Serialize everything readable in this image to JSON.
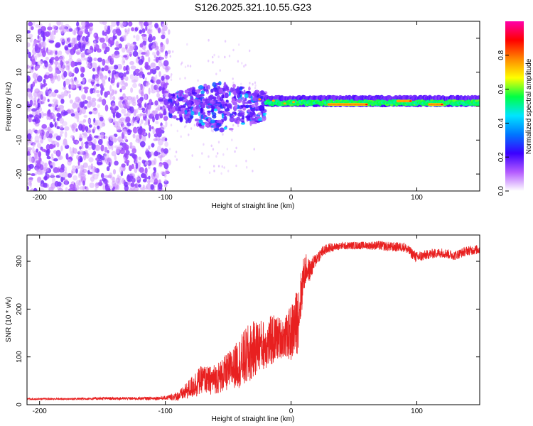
{
  "title": "S126.2025.321.10.55.G23",
  "colors": {
    "snr_line": "#e82020",
    "colormap": [
      "#ffffff",
      "#b45cff",
      "#3a00ff",
      "#0077ff",
      "#00e5ff",
      "#00ff44",
      "#ffff00",
      "#ff8800",
      "#ff0000",
      "#ff00aa"
    ]
  },
  "chart_data": [
    {
      "type": "heatmap",
      "name": "spectrogram",
      "xlabel": "Height of straight line (km)",
      "ylabel": "Frequency (Hz)",
      "xlim": [
        -210,
        150
      ],
      "ylim": [
        -25,
        25
      ],
      "xticks": [
        -200,
        -100,
        0,
        100
      ],
      "yticks": [
        -20,
        -10,
        0,
        10,
        20
      ],
      "colorbar": {
        "label": "Normalized spectral amplitude",
        "range": [
          0,
          1
        ],
        "ticks": [
          "0.0",
          "0.2",
          "0.4",
          "0.6",
          "0.8"
        ],
        "tick_values": [
          0.0,
          0.2,
          0.4,
          0.6,
          0.8
        ]
      },
      "regions": [
        {
          "x": [
            -210,
            -97
          ],
          "freq_band": [
            -25,
            25
          ],
          "amplitude": 0.08,
          "description_level": "noise"
        },
        {
          "x": [
            -97,
            -20
          ],
          "freq_band": [
            -8,
            6
          ],
          "amplitude": 0.2
        },
        {
          "x": [
            -20,
            150
          ],
          "freq_center": 1,
          "freq_band": [
            -1,
            2
          ],
          "amplitude": 0.55
        },
        {
          "x": [
            30,
            60
          ],
          "freq_center": 0.5,
          "amplitude": 0.9
        },
        {
          "x": [
            85,
            95
          ],
          "freq_center": 1.5,
          "amplitude": 0.9
        },
        {
          "x": [
            110,
            120
          ],
          "freq_center": 0.5,
          "amplitude": 0.9
        }
      ]
    },
    {
      "type": "line",
      "name": "snr",
      "xlabel": "Height of straight line (km)",
      "ylabel": "SNR (10 * v/v)",
      "xlim": [
        -210,
        150
      ],
      "ylim": [
        0,
        355
      ],
      "xticks": [
        -200,
        -100,
        0,
        100
      ],
      "yticks": [
        0,
        100,
        200,
        300
      ],
      "series": [
        {
          "x": [
            -210,
            -180,
            -150,
            -120,
            -100,
            -90,
            -85,
            -80,
            -75,
            -70,
            -65,
            -60,
            -55,
            -50,
            -45,
            -40,
            -35,
            -30,
            -25,
            -20,
            -15,
            -10,
            -5,
            0,
            5,
            8,
            10,
            12,
            15,
            18,
            20,
            25,
            30,
            35,
            40,
            50,
            60,
            70,
            80,
            90,
            100,
            110,
            120,
            130,
            140,
            150
          ],
          "y": [
            12,
            12,
            13,
            13,
            14,
            18,
            25,
            35,
            45,
            55,
            50,
            55,
            60,
            70,
            80,
            90,
            100,
            115,
            125,
            125,
            135,
            140,
            140,
            150,
            175,
            230,
            270,
            285,
            280,
            295,
            305,
            320,
            328,
            330,
            332,
            333,
            333,
            333,
            330,
            330,
            308,
            315,
            318,
            312,
            322,
            325
          ],
          "amplitude": [
            2,
            2,
            3,
            3,
            4,
            10,
            15,
            22,
            30,
            28,
            30,
            32,
            36,
            40,
            45,
            55,
            65,
            60,
            55,
            50,
            55,
            45,
            40,
            60,
            70,
            50,
            40,
            30,
            22,
            18,
            14,
            12,
            10,
            8,
            8,
            8,
            8,
            10,
            10,
            10,
            12,
            10,
            10,
            10,
            10,
            10
          ]
        }
      ]
    }
  ]
}
